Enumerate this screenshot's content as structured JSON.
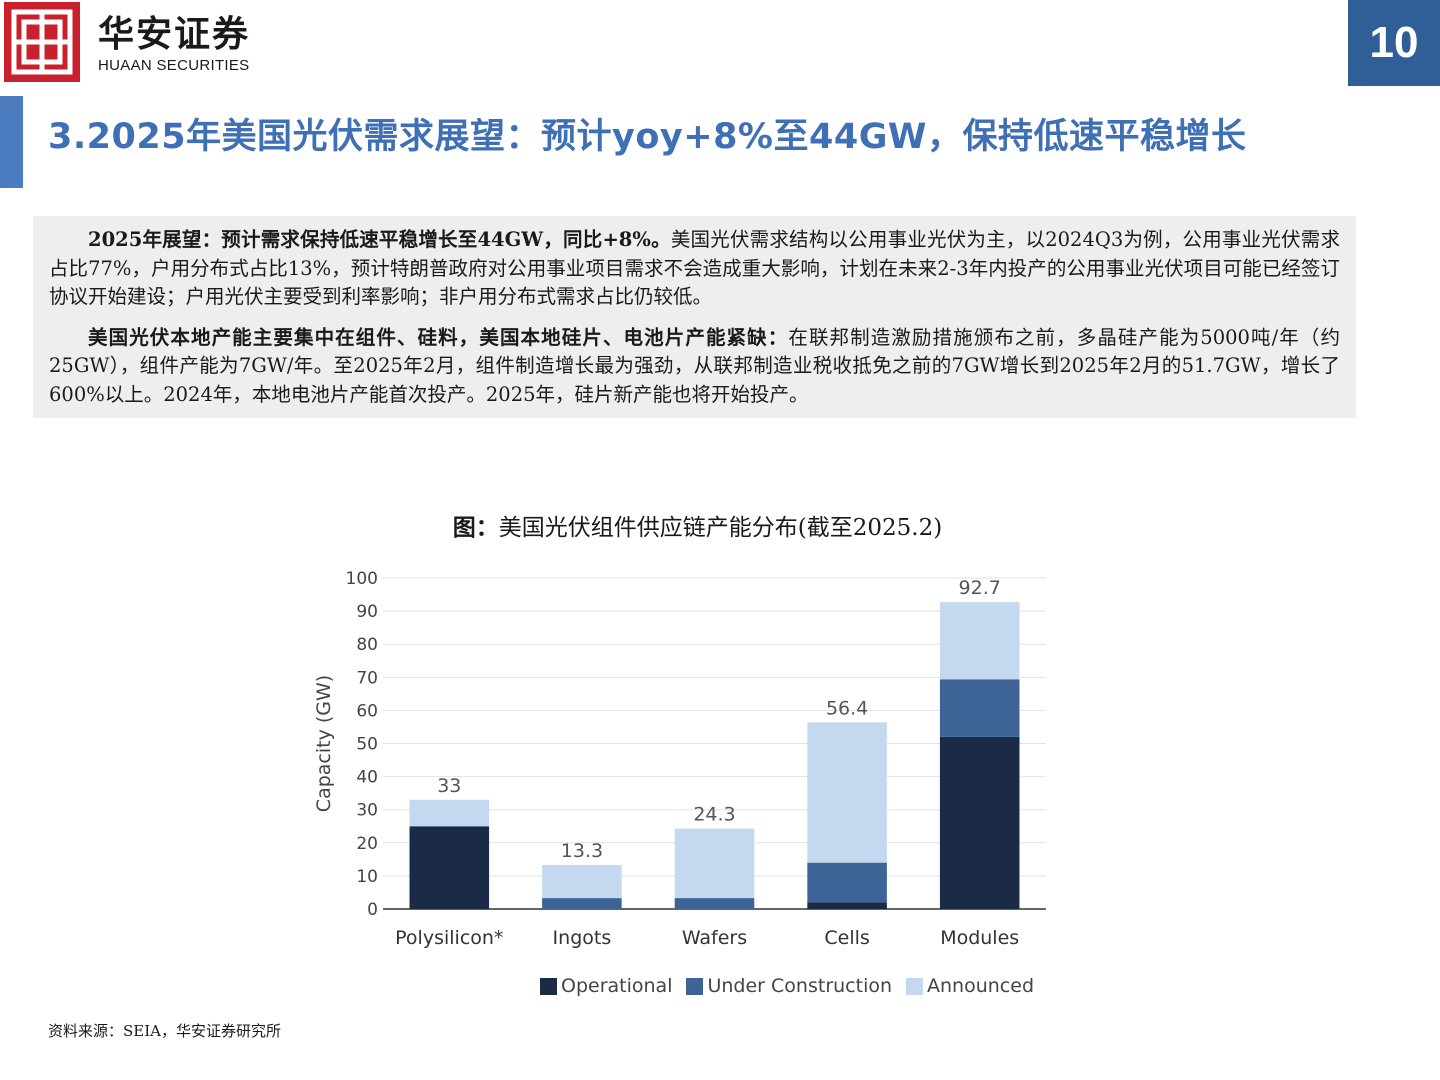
{
  "header": {
    "logo_cn": "华安证券",
    "logo_en": "HUAAN SECURITIES",
    "page_number": "10"
  },
  "slide_title": "3.2025年美国光伏需求展望：预计yoy+8%至44GW，保持低速平稳增长",
  "summary": {
    "p1_bold": "2025年展望：预计需求保持低速平稳增长至44GW，同比+8%。",
    "p1_text": "美国光伏需求结构以公用事业光伏为主，以2024Q3为例，公用事业光伏需求占比77%，户用分布式占比13%，预计特朗普政府对公用事业项目需求不会造成重大影响，计划在未来2-3年内投产的公用事业光伏项目可能已经签订协议开始建设；户用光伏主要受到利率影响；非户用分布式需求占比仍较低。",
    "p2_bold": "美国光伏本地产能主要集中在组件、硅料，美国本地硅片、电池片产能紧缺：",
    "p2_text": "在联邦制造激励措施颁布之前，多晶硅产能为5000吨/年（约25GW），组件产能为7GW/年。至2025年2月，组件制造增长最为强劲，从联邦制造业税收抵免之前的7GW增长到2025年2月的51.7GW，增长了600%以上。2024年，本地电池片产能首次投产。2025年，硅片新产能也将开始投产。"
  },
  "figure": {
    "label": "图：",
    "title": "美国光伏组件供应链产能分布(截至2025.2)"
  },
  "chart_data": {
    "type": "bar",
    "stacked": true,
    "categories": [
      "Polysilicon*",
      "Ingots",
      "Wafers",
      "Cells",
      "Modules"
    ],
    "series": [
      {
        "name": "Operational",
        "color": "#1b2a47",
        "values": [
          25,
          0,
          0,
          2,
          52
        ]
      },
      {
        "name": "Under Construction",
        "color": "#3e6497",
        "values": [
          0,
          3.3,
          3.3,
          12,
          17.4
        ]
      },
      {
        "name": "Announced",
        "color": "#c4d9ef",
        "values": [
          8,
          10,
          21,
          42.4,
          23.3
        ]
      }
    ],
    "totals": [
      "33",
      "13.3",
      "24.3",
      "56.4",
      "92.7"
    ],
    "ylabel": "Capacity (GW)",
    "ylim": [
      0,
      100
    ],
    "yticks": [
      "0",
      "10",
      "20",
      "30",
      "40",
      "50",
      "60",
      "70",
      "80",
      "90",
      "100"
    ],
    "grid": true,
    "legend": "bottom"
  },
  "source": "资料来源：SEIA，华安证券研究所"
}
